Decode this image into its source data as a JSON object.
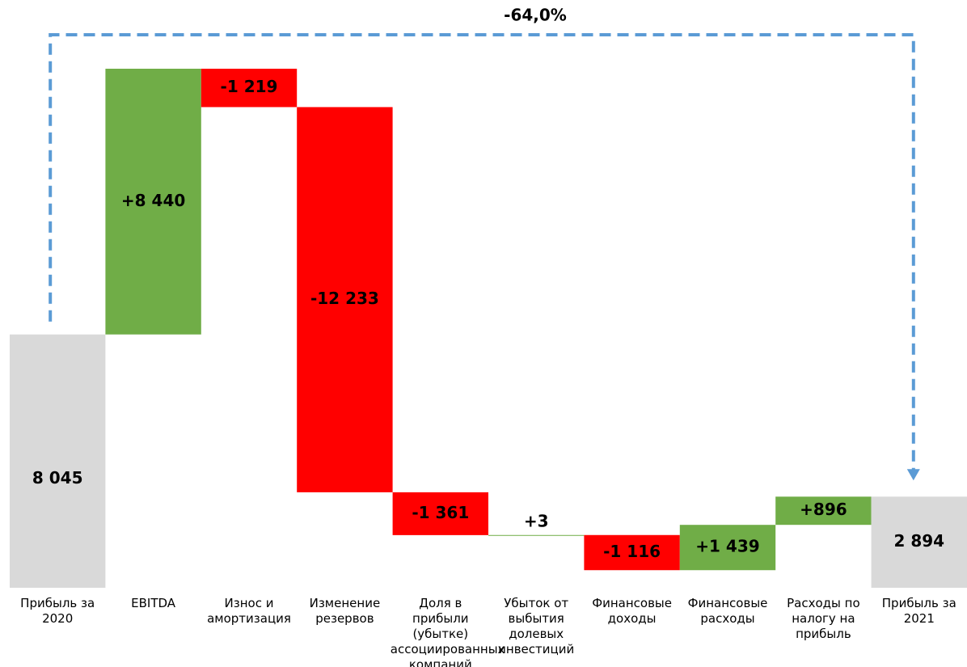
{
  "chart_data": {
    "type": "waterfall",
    "annotation": "-64,0%",
    "categories": [
      "Прибыль за 2020",
      "EBITDA",
      "Износ и амортизация",
      "Изменение резервов",
      "Доля в прибыли (убытке) ассоциированных компаний",
      "Убыток от выбытия долевых инвестиций",
      "Финансовые доходы",
      "Финансовые расходы",
      "Расходы по налогу на прибыль",
      "Прибыль за 2021"
    ],
    "values": [
      8045,
      8440,
      -1219,
      -12233,
      -1361,
      3,
      -1116,
      1439,
      896,
      2894
    ],
    "value_labels": [
      "8 045",
      "+8 440",
      "-1 219",
      "-12 233",
      "-1 361",
      "+3",
      "-1 116",
      "+1 439",
      "+896",
      "2 894"
    ],
    "measure": [
      "total",
      "relative",
      "relative",
      "relative",
      "relative",
      "relative",
      "relative",
      "relative",
      "relative",
      "total"
    ],
    "total_color": "#d9d9d9",
    "increase_color": "#70ad47",
    "decrease_color": "#ff0000",
    "annotation_color": "#5b9bd5"
  }
}
